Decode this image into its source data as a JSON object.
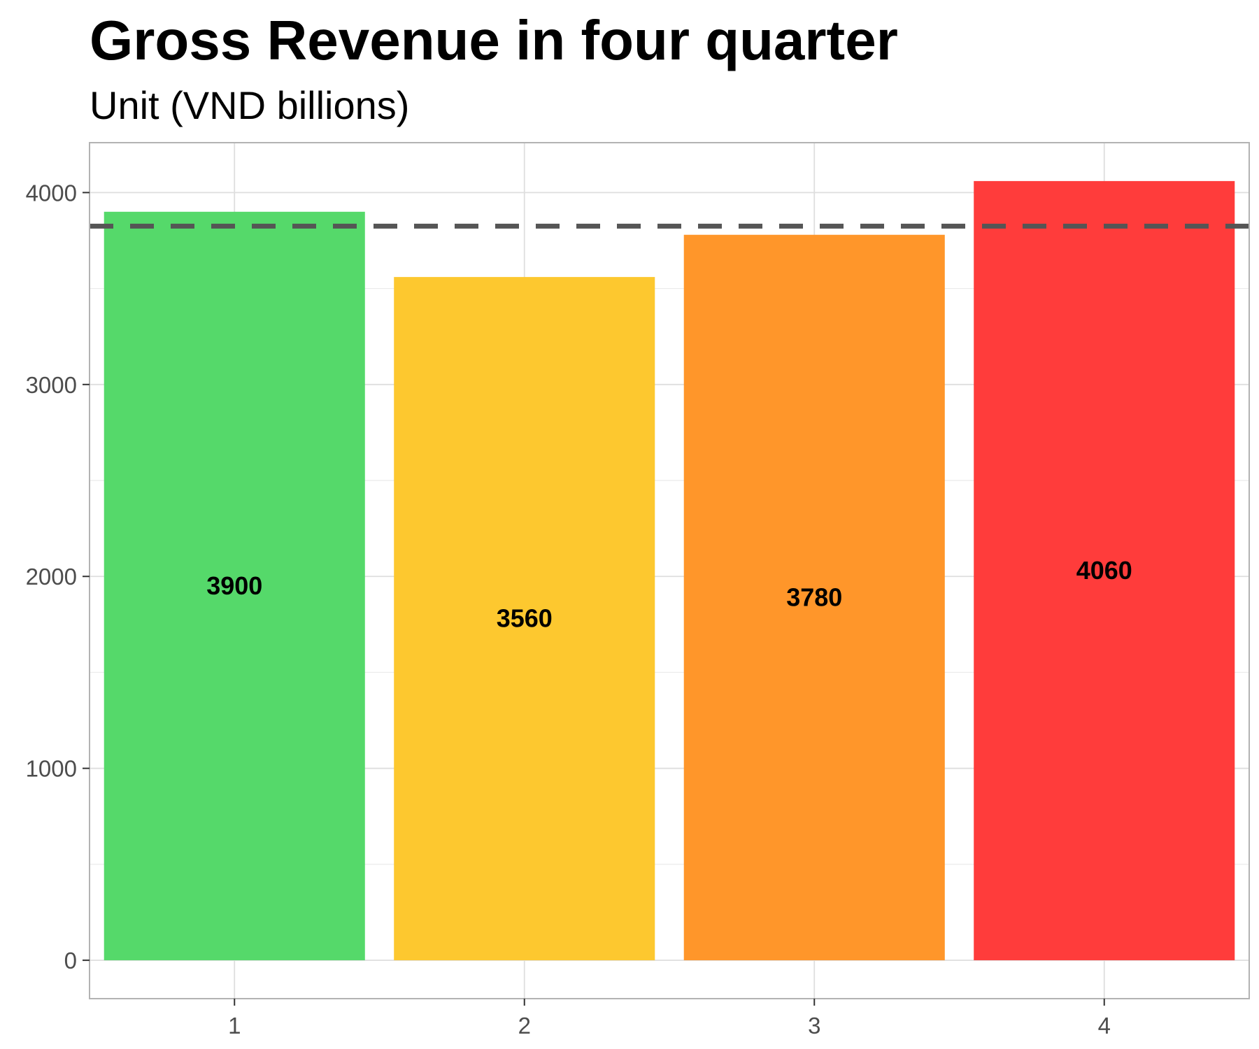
{
  "chart_data": {
    "type": "bar",
    "title": "Gross Revenue in four quarter",
    "subtitle": "Unit (VND billions)",
    "categories": [
      "1",
      "2",
      "3",
      "4"
    ],
    "values": [
      3900,
      3560,
      3780,
      4060
    ],
    "value_labels": [
      "3900",
      "3560",
      "3780",
      "4060"
    ],
    "bar_colors": [
      "#55d96a",
      "#fdc82f",
      "#ff962a",
      "#ff3c3b"
    ],
    "reference_line": {
      "value": 3825,
      "style": "dashed",
      "color": "#555555"
    },
    "ylim": [
      -200,
      4260
    ],
    "y_ticks": [
      0,
      1000,
      2000,
      3000,
      4000
    ],
    "y_tick_labels": [
      "0",
      "1000",
      "2000",
      "3000",
      "4000"
    ],
    "y_minor_ticks": [
      500,
      1500,
      2500,
      3500
    ],
    "grid": true,
    "legend": "none"
  }
}
